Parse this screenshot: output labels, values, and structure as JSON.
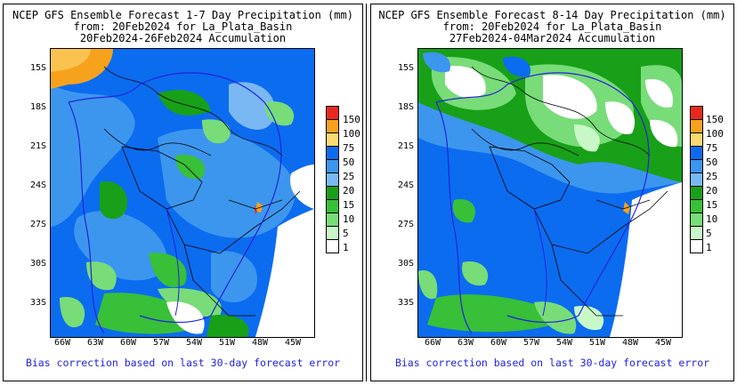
{
  "panels": [
    {
      "title_line1": "NCEP GFS Ensemble Forecast 1-7 Day Precipitation (mm)",
      "title_line2": "from: 20Feb2024   for La_Plata_Basin",
      "title_line3": "20Feb2024-26Feb2024 Accumulation",
      "footer": "Bias correction based on last 30-day forecast error"
    },
    {
      "title_line1": "NCEP GFS Ensemble Forecast 8-14 Day Precipitation (mm)",
      "title_line2": "from: 20Feb2024   for La_Plata_Basin",
      "title_line3": "27Feb2024-04Mar2024 Accumulation",
      "footer": "Bias correction based on last 30-day forecast error"
    }
  ],
  "lat_labels": [
    "15S",
    "18S",
    "21S",
    "24S",
    "27S",
    "30S",
    "33S"
  ],
  "lon_labels": [
    "66W",
    "63W",
    "60W",
    "57W",
    "54W",
    "51W",
    "48W",
    "45W"
  ],
  "colorbar": {
    "labels": [
      "150",
      "100",
      "75",
      "50",
      "25",
      "20",
      "15",
      "10",
      "5",
      "1"
    ],
    "colors": [
      "#e8281c",
      "#f7a21c",
      "#fcd973",
      "#0b6cf0",
      "#3c96ee",
      "#7ab8f4",
      "#18a018",
      "#38c038",
      "#78dc78",
      "#c8f8c8",
      "#ffffff"
    ]
  }
}
